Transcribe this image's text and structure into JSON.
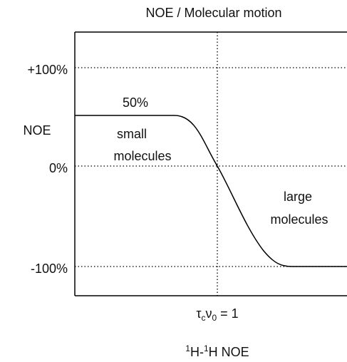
{
  "title": "NOE / Molecular motion",
  "y_axis": {
    "label": "NOE",
    "ticks": [
      "+100%",
      "0%",
      "-100%"
    ]
  },
  "annotations": {
    "plateau": "50%",
    "small": [
      "small",
      "molecules"
    ],
    "large": [
      "large",
      "molecules"
    ]
  },
  "x_marker": {
    "parts": [
      "τ",
      "c",
      "ν",
      "0",
      " = 1"
    ]
  },
  "x_label": {
    "parts": [
      "1",
      "H-",
      "1",
      "H NOE"
    ]
  }
}
